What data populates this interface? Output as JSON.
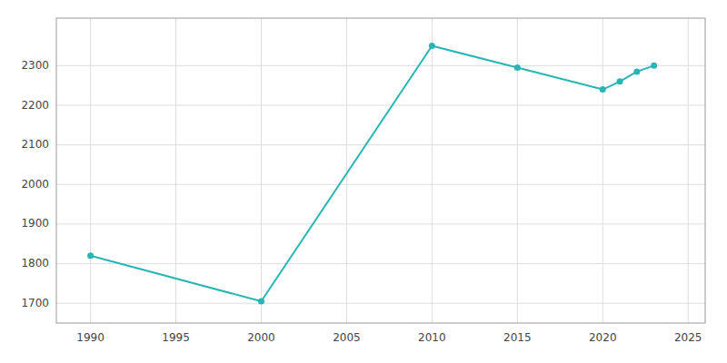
{
  "chart_data": {
    "type": "line",
    "x": [
      1990,
      2000,
      2010,
      2015,
      2020,
      2021,
      2022,
      2023
    ],
    "values": [
      1820,
      1705,
      2350,
      2295,
      2240,
      2260,
      2285,
      2300
    ],
    "color": "#2ab5b5",
    "marker": "circle",
    "xlim": [
      1988,
      2026
    ],
    "ylim": [
      1650,
      2420
    ],
    "xticks": [
      1990,
      1995,
      2000,
      2005,
      2010,
      2015,
      2020,
      2025
    ],
    "yticks": [
      1700,
      1800,
      1900,
      2000,
      2100,
      2200,
      2300
    ],
    "grid": true
  }
}
